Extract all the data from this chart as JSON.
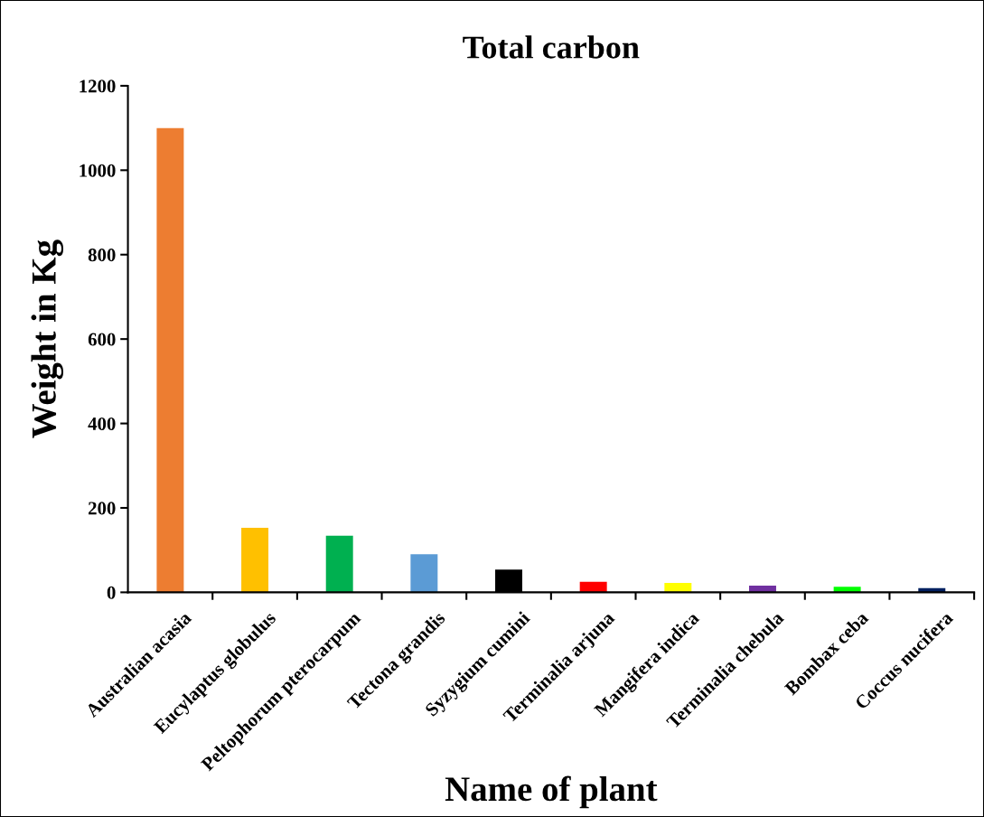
{
  "chart_data": {
    "type": "bar",
    "title": "Total carbon",
    "xlabel": "Name of plant",
    "ylabel": "Weight in Kg",
    "categories": [
      "Australian acasia",
      "Eucylaptus globulus",
      "Peltophorum pterocarpum",
      "Tectona grandis",
      "Syzygium cumini",
      "Terminalia arjuna",
      "Mangifera indica",
      "Terminalia chebula",
      "Bombax ceba",
      "Coccus nucifera"
    ],
    "values": [
      1100,
      153,
      134,
      90,
      54,
      25,
      22,
      16,
      13,
      10
    ],
    "colors": [
      "#ed7d31",
      "#ffc000",
      "#00b050",
      "#5b9bd5",
      "#000000",
      "#ff0000",
      "#ffff00",
      "#7030a0",
      "#00ff00",
      "#002060"
    ],
    "ylim": [
      0,
      1200
    ],
    "yticks": [
      0,
      200,
      400,
      600,
      800,
      1000,
      1200
    ],
    "grid": false,
    "legend": false
  }
}
